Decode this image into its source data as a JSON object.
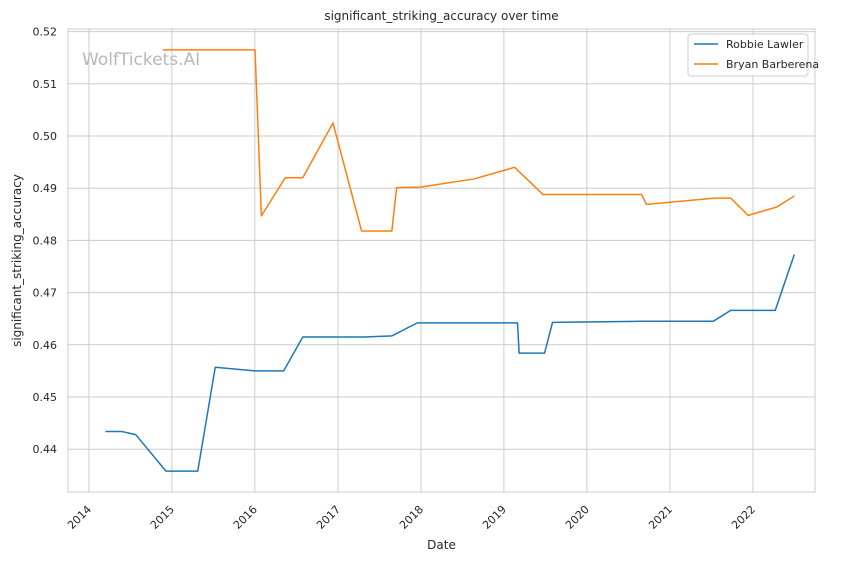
{
  "chart_data": {
    "type": "line",
    "title": "significant_striking_accuracy over time",
    "xlabel": "Date",
    "ylabel": "significant_striking_accuracy",
    "watermark": "WolfTickets.AI",
    "grid": true,
    "legend_position": "top-right",
    "xlim": [
      "2013-10-01",
      "2022-10-01"
    ],
    "ylim": [
      0.4318,
      0.5205
    ],
    "x_ticks": [
      "2014-01-01",
      "2015-01-01",
      "2016-01-01",
      "2017-01-01",
      "2018-01-01",
      "2019-01-01",
      "2020-01-01",
      "2021-01-01",
      "2022-01-01"
    ],
    "x_tick_labels": [
      "2014",
      "2015",
      "2016",
      "2017",
      "2018",
      "2019",
      "2020",
      "2021",
      "2022"
    ],
    "y_ticks": [
      0.44,
      0.45,
      0.46,
      0.47,
      0.48,
      0.49,
      0.5,
      0.51,
      0.52
    ],
    "y_tick_labels": [
      "0.44",
      "0.45",
      "0.46",
      "0.47",
      "0.48",
      "0.49",
      "0.50",
      "0.51",
      "0.52"
    ],
    "series": [
      {
        "name": "Robbie Lawler",
        "color": "#1f77b4",
        "points": [
          {
            "x": "2014-03-15",
            "y": 0.4434
          },
          {
            "x": "2014-05-24",
            "y": 0.4434
          },
          {
            "x": "2014-07-26",
            "y": 0.4428
          },
          {
            "x": "2014-12-06",
            "y": 0.4358
          },
          {
            "x": "2015-04-25",
            "y": 0.4358
          },
          {
            "x": "2015-07-11",
            "y": 0.4557
          },
          {
            "x": "2016-01-02",
            "y": 0.455
          },
          {
            "x": "2016-05-07",
            "y": 0.455
          },
          {
            "x": "2016-07-30",
            "y": 0.4615
          },
          {
            "x": "2017-04-29",
            "y": 0.4615
          },
          {
            "x": "2017-08-26",
            "y": 0.4617
          },
          {
            "x": "2017-12-16",
            "y": 0.4642
          },
          {
            "x": "2019-03-02",
            "y": 0.4642
          },
          {
            "x": "2019-03-09",
            "y": 0.4584
          },
          {
            "x": "2019-06-29",
            "y": 0.4584
          },
          {
            "x": "2019-08-03",
            "y": 0.4643
          },
          {
            "x": "2020-08-29",
            "y": 0.4645
          },
          {
            "x": "2021-07-10",
            "y": 0.4645
          },
          {
            "x": "2021-09-25",
            "y": 0.4666
          },
          {
            "x": "2022-04-09",
            "y": 0.4666
          },
          {
            "x": "2022-07-02",
            "y": 0.4773
          }
        ]
      },
      {
        "name": "Bryan Barberena",
        "color": "#ff7f0e",
        "points": [
          {
            "x": "2014-11-22",
            "y": 0.5165
          },
          {
            "x": "2016-01-02",
            "y": 0.5165
          },
          {
            "x": "2016-01-30",
            "y": 0.4847
          },
          {
            "x": "2016-05-14",
            "y": 0.492
          },
          {
            "x": "2016-07-30",
            "y": 0.492
          },
          {
            "x": "2016-12-10",
            "y": 0.5025
          },
          {
            "x": "2017-04-15",
            "y": 0.4818
          },
          {
            "x": "2017-08-26",
            "y": 0.4818
          },
          {
            "x": "2017-09-16",
            "y": 0.4901
          },
          {
            "x": "2017-12-30",
            "y": 0.4902
          },
          {
            "x": "2018-08-25",
            "y": 0.4918
          },
          {
            "x": "2019-02-17",
            "y": 0.494
          },
          {
            "x": "2019-06-22",
            "y": 0.4888
          },
          {
            "x": "2020-08-29",
            "y": 0.4888
          },
          {
            "x": "2020-09-19",
            "y": 0.4869
          },
          {
            "x": "2021-07-17",
            "y": 0.4881
          },
          {
            "x": "2021-09-25",
            "y": 0.4881
          },
          {
            "x": "2021-12-11",
            "y": 0.4848
          },
          {
            "x": "2022-04-16",
            "y": 0.4864
          },
          {
            "x": "2022-07-02",
            "y": 0.4885
          }
        ]
      }
    ]
  }
}
